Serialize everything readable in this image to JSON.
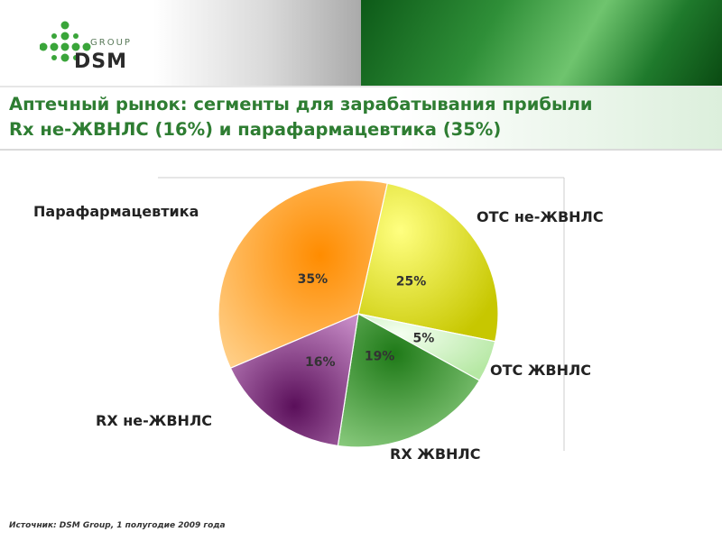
{
  "header": {
    "logo_group_text": "GROUP",
    "logo_brand_text": "DSM"
  },
  "title": {
    "line1": "Аптечный рынок: сегменты для зарабатывания прибыли",
    "line2": "Rx не-ЖВНЛС (16%) и парафармацевтика (35%)"
  },
  "chart_data": {
    "type": "pie",
    "slices": [
      {
        "name": "ОТС не-ЖВНЛС",
        "value": 25,
        "label": "25%",
        "color": "#e0e000"
      },
      {
        "name": "ОТС ЖВНЛС",
        "value": 5,
        "label": "5%",
        "color": "#c8f0b8"
      },
      {
        "name": "RX ЖВНЛС",
        "value": 19,
        "label": "19%",
        "color": "#3a9a32"
      },
      {
        "name": "RX не-ЖВНЛС",
        "value": 16,
        "label": "16%",
        "color": "#7a1a7a"
      },
      {
        "name": "Парафармацевтика",
        "value": 35,
        "label": "35%",
        "color": "#ff9a1a"
      }
    ],
    "legend_placement": "labels beside slices"
  },
  "source": "Источник: DSM Group, 1 полугодие 2009 года"
}
